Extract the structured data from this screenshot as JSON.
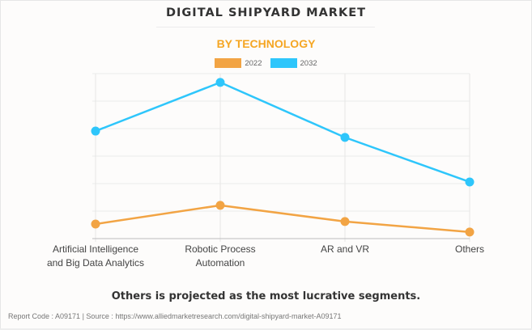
{
  "header": {
    "title": "DIGITAL SHIPYARD MARKET",
    "subtitle": "BY TECHNOLOGY"
  },
  "insight": "Others is projected as the most lucrative segments.",
  "footer": {
    "text": "Report Code : A09171  |  Source : https://www.alliedmarketresearch.com/digital-shipyard-market-A09171"
  },
  "colors": {
    "2022": "#f2a444",
    "2032": "#2ec6fb",
    "title": "#333333",
    "subtitle": "#f5a623"
  },
  "chart_data": {
    "type": "line",
    "title": "DIGITAL SHIPYARD MARKET",
    "subtitle": "BY TECHNOLOGY",
    "xlabel": "",
    "ylabel": "",
    "y_tick_labels_shown": false,
    "ylim": [
      0,
      6
    ],
    "y_units": "relative grid units (no axis values shown)",
    "grid": true,
    "legend_position": "top-center",
    "categories": [
      "Artificial Intelligence and Big Data Analytics",
      "Robotic Process Automation",
      "AR and VR",
      "Others"
    ],
    "category_lines": [
      [
        "Artificial Intelligence",
        "and Big Data Analytics"
      ],
      [
        "Robotic Process",
        "Automation"
      ],
      [
        "AR and VR"
      ],
      [
        "Others"
      ]
    ],
    "series": [
      {
        "name": "2022",
        "color": "#f2a444",
        "values": [
          0.53,
          1.21,
          0.62,
          0.24
        ]
      },
      {
        "name": "2032",
        "color": "#2ec6fb",
        "values": [
          3.91,
          5.68,
          3.68,
          2.06
        ]
      }
    ]
  }
}
